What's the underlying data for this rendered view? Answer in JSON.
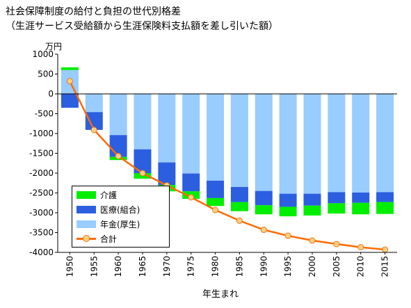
{
  "header": {
    "title": "社会保障制度の給付と負担の世代別格差",
    "subtitle": "（生涯サービス受給額から生涯保険料支払額を差し引いた額）"
  },
  "chart_data": {
    "type": "bar",
    "stacked": true,
    "unit_label": "万円",
    "xlabel": "年生まれ",
    "ylabel": "",
    "ylim": [
      -4000,
      1000
    ],
    "yticks": [
      "1000",
      "500",
      "0",
      "-500",
      "-1000",
      "-1500",
      "-2000",
      "-2500",
      "-3000",
      "-3500",
      "-4000"
    ],
    "categories": [
      "1950",
      "1955",
      "1960",
      "1965",
      "1970",
      "1975",
      "1980",
      "1985",
      "1990",
      "1995",
      "2000",
      "2005",
      "2010",
      "2015"
    ],
    "series": [
      {
        "name": "介護",
        "color": "#00ee00",
        "values": [
          70,
          0,
          -80,
          -140,
          -160,
          -190,
          -200,
          -230,
          -230,
          -240,
          -250,
          -260,
          -290,
          -300
        ]
      },
      {
        "name": "医療(組合)",
        "color": "#2b5fdf",
        "values": [
          -350,
          -450,
          -550,
          -600,
          -570,
          -450,
          -440,
          -380,
          -360,
          -330,
          -300,
          -280,
          -260,
          -250
        ]
      },
      {
        "name": "年金(厚生)",
        "color": "#99ccff",
        "values": [
          600,
          -460,
          -1040,
          -1400,
          -1730,
          -2010,
          -2190,
          -2350,
          -2450,
          -2520,
          -2520,
          -2480,
          -2490,
          -2480
        ]
      }
    ],
    "total": {
      "name": "合計",
      "color": "#ff6a00",
      "values": [
        320,
        -910,
        -1570,
        -2000,
        -2310,
        -2610,
        -2930,
        -3200,
        -3430,
        -3580,
        -3700,
        -3790,
        -3870,
        -3930
      ]
    },
    "legend_position": "bottom-left",
    "grid": false
  }
}
